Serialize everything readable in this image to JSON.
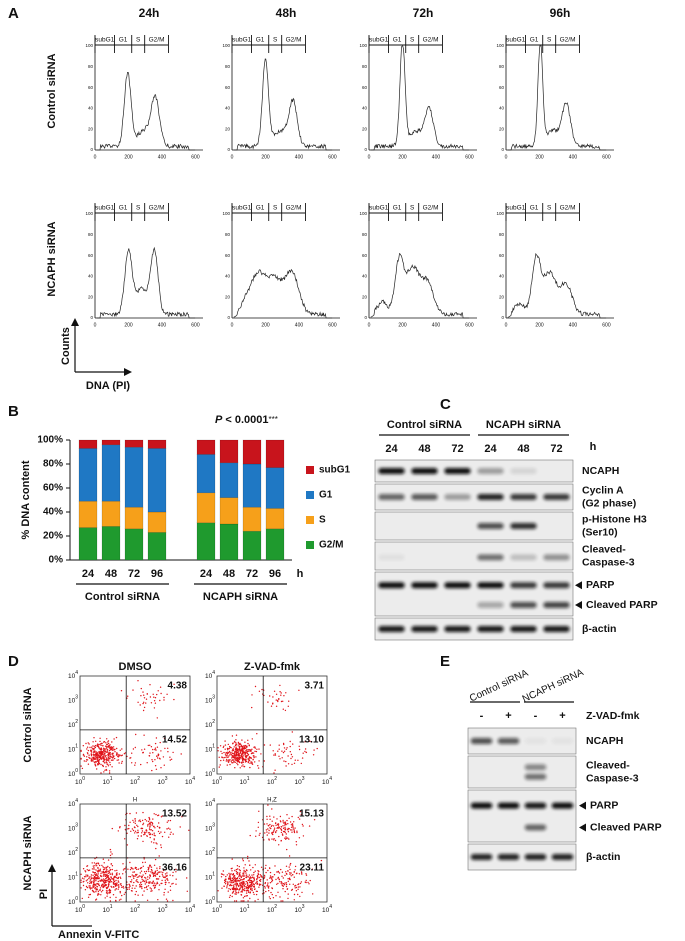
{
  "panel_labels": [
    "A",
    "B",
    "C",
    "D",
    "E"
  ],
  "panel_a": {
    "time_points": [
      "24h",
      "48h",
      "72h",
      "96h"
    ],
    "row_labels": [
      "Control siRNA",
      "NCAPH siRNA"
    ],
    "gates": [
      "subG1",
      "G1",
      "S",
      "G2/M"
    ],
    "x_ticks": [
      "0",
      "200",
      "400",
      "600"
    ],
    "y_ticks": [
      "0",
      "20",
      "40",
      "60",
      "80",
      "100"
    ],
    "y_axis_label": "Counts",
    "x_axis_label": "DNA (PI)"
  },
  "chart_data": {
    "type": "bar",
    "stacked": true,
    "annotation": {
      "p": "P",
      "text": " < 0.0001",
      "stars": "***"
    },
    "ylabel": "% DNA content",
    "categories": [
      "24",
      "48",
      "72",
      "96",
      "24",
      "48",
      "72",
      "96"
    ],
    "groups": [
      "Control siRNA",
      "NCAPH siRNA"
    ],
    "x_unit": "h",
    "series": [
      {
        "name": "G2/M",
        "color": "#1f9a2e",
        "values": [
          27,
          28,
          26,
          23,
          31,
          30,
          24,
          26
        ]
      },
      {
        "name": "S",
        "color": "#f6a01a",
        "values": [
          22,
          21,
          18,
          17,
          25,
          22,
          20,
          17
        ]
      },
      {
        "name": "G1",
        "color": "#1f78c4",
        "values": [
          44,
          47,
          50,
          53,
          32,
          29,
          36,
          34
        ]
      },
      {
        "name": "subG1",
        "color": "#c8141c",
        "values": [
          7,
          4,
          6,
          7,
          12,
          19,
          20,
          23
        ]
      }
    ],
    "ylim": [
      0,
      100
    ],
    "yticks": [
      {
        "value": 0,
        "label": "0%"
      },
      {
        "value": 20,
        "label": "20%"
      },
      {
        "value": 40,
        "label": "40%"
      },
      {
        "value": 60,
        "label": "60%"
      },
      {
        "value": 80,
        "label": "80%"
      },
      {
        "value": 100,
        "label": "100%"
      }
    ],
    "legend": "right"
  },
  "panel_c": {
    "groups": [
      "Control siRNA",
      "NCAPH siRNA"
    ],
    "lanes": [
      "24",
      "48",
      "72",
      "24",
      "48",
      "72"
    ],
    "unit": "h",
    "rows": [
      [
        "NCAPH"
      ],
      [
        "Cyclin A",
        "(G2 phase)"
      ],
      [
        "p-Histone H3",
        "(Ser10)"
      ],
      [
        "Cleaved-",
        "Caspase-3"
      ],
      [
        "PARP"
      ],
      [
        "Cleaved PARP"
      ],
      [
        "β-actin"
      ]
    ]
  },
  "panel_d": {
    "columns": [
      "DMSO",
      "Z-VAD-fmk"
    ],
    "rows": [
      "Control siRNA",
      "NCAPH siRNA"
    ],
    "quadrant_values": [
      [
        [
          "4.38",
          "14.52"
        ],
        [
          "3.71",
          "13.10"
        ]
      ],
      [
        [
          "13.52",
          "36.16"
        ],
        [
          "15.13",
          "23.11"
        ]
      ]
    ],
    "plot_tags": [
      "H",
      "H,Z"
    ],
    "tick_base": "10",
    "tick_exponents": [
      "0",
      "1",
      "2",
      "3",
      "4"
    ],
    "y_axis_label": "PI",
    "x_axis_label": "Annexin V-FITC"
  },
  "panel_e": {
    "groups": [
      "Control siRNA",
      "NCAPH siRNA"
    ],
    "treatment": "Z-VAD-fmk",
    "signs": [
      "-",
      "+",
      "-",
      "+"
    ],
    "rows": [
      [
        "NCAPH"
      ],
      [
        "Cleaved-",
        "Caspase-3"
      ],
      [
        "PARP"
      ],
      [
        "Cleaved PARP"
      ],
      [
        "β-actin"
      ]
    ]
  }
}
